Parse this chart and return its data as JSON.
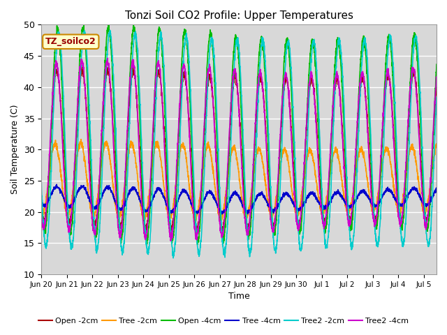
{
  "title": "Tonzi Soil CO2 Profile: Upper Temperatures",
  "xlabel": "Time",
  "ylabel": "Soil Temperature (C)",
  "ylim": [
    10,
    50
  ],
  "background_color": "#d8d8d8",
  "grid_color": "#ffffff",
  "label_box": "TZ_soilco2",
  "label_box_color": "#ffffcc",
  "label_box_edge": "#cc8800",
  "label_box_text_color": "#990000",
  "x_tick_labels": [
    "Jun 20",
    "Jun 21",
    "Jun 22",
    "Jun 23",
    "Jun 24",
    "Jun 25",
    "Jun 26",
    "Jun 27",
    "Jun 28",
    "Jun 29",
    "Jun 30",
    "Jul 1",
    "Jul 2",
    "Jul 3",
    "Jul 4",
    "Jul 5"
  ],
  "series": [
    {
      "label": "Open -2cm",
      "color": "#aa0000",
      "lw": 1.2
    },
    {
      "label": "Tree -2cm",
      "color": "#ff9900",
      "lw": 1.2
    },
    {
      "label": "Open -4cm",
      "color": "#00bb00",
      "lw": 1.2
    },
    {
      "label": "Tree -4cm",
      "color": "#0000cc",
      "lw": 1.2
    },
    {
      "label": "Tree2 -2cm",
      "color": "#00cccc",
      "lw": 1.2
    },
    {
      "label": "Tree2 -4cm",
      "color": "#cc00cc",
      "lw": 1.2
    }
  ]
}
